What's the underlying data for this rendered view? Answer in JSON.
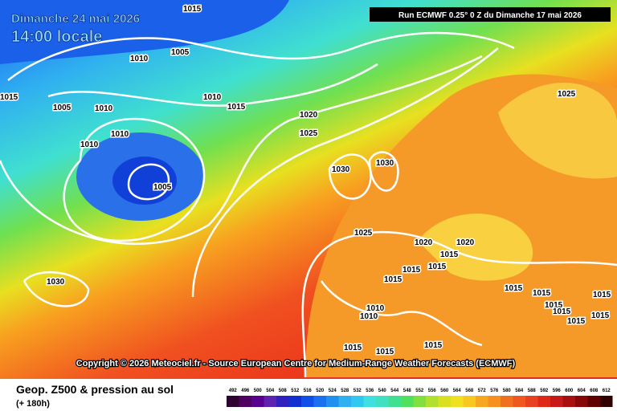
{
  "header": {
    "date": "Dimanche 24 mai 2026",
    "time": "14:00 locale",
    "run": "Run ECMWF 0.25° 0 Z du Dimanche 17 mai 2026"
  },
  "copyright": "Copyright © 2026 Meteociel.fr - Source European Centre for Medium-Range Weather Forecasts (ECMWF)",
  "footer": {
    "title": "Geop. Z500 & pression au sol",
    "lead": "(+ 180h)"
  },
  "legend": {
    "labels": [
      492,
      496,
      500,
      504,
      508,
      512,
      516,
      520,
      524,
      528,
      532,
      536,
      540,
      544,
      548,
      552,
      556,
      560,
      564,
      568,
      572,
      576,
      580,
      584,
      588,
      592,
      596,
      600,
      604,
      608,
      612
    ]
  },
  "isobar_labels": [
    1015,
    1010,
    1005,
    1015,
    1005,
    1010,
    1010,
    1015,
    1010,
    1010,
    1005,
    1020,
    1025,
    1030,
    1030,
    1025,
    1025,
    1020,
    1020,
    1015,
    1015,
    1015,
    1015,
    1010,
    1010,
    1015,
    1015,
    1015,
    1015,
    1015,
    1015,
    1015,
    1015,
    1015,
    1015,
    1030
  ]
}
